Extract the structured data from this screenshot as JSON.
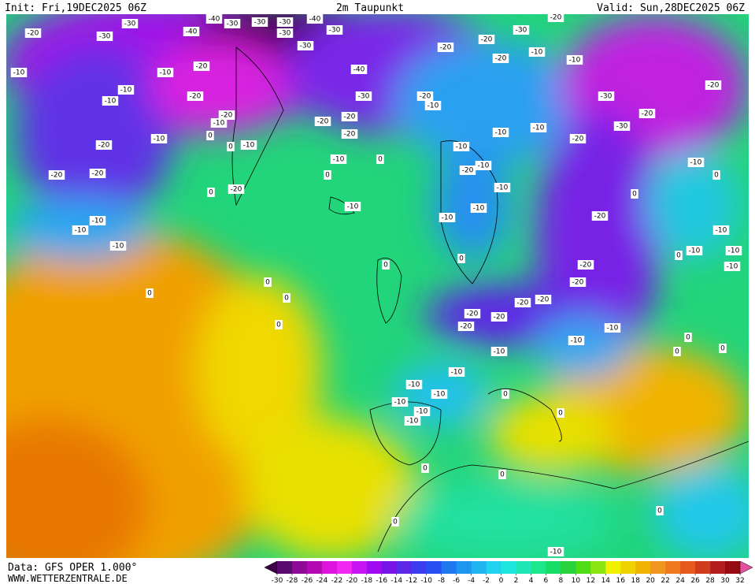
{
  "header": {
    "init": "Init: Fri,19DEC2025 06Z",
    "title": "2m Taupunkt",
    "valid": "Valid: Sun,28DEC2025 06Z"
  },
  "footer": {
    "source": "Data: GFS OPER 1.000°",
    "website": "WWW.WETTERZENTRALE.DE"
  },
  "colorbar": {
    "ticks": [
      -30,
      -28,
      -26,
      -24,
      -22,
      -20,
      -18,
      -16,
      -14,
      -12,
      -10,
      -8,
      -6,
      -4,
      -2,
      0,
      2,
      4,
      6,
      8,
      10,
      12,
      14,
      16,
      18,
      20,
      22,
      24,
      26,
      28,
      30,
      32
    ],
    "colors": [
      "#3c0046",
      "#5a0a6e",
      "#8c0a96",
      "#b40ab4",
      "#dc14dc",
      "#f028f0",
      "#c814f0",
      "#a00af0",
      "#7814e6",
      "#5a28e6",
      "#3c3cf0",
      "#2850f0",
      "#1e78f0",
      "#1e96f0",
      "#1eb4f0",
      "#1ed2f0",
      "#1ee6dc",
      "#1ee6b4",
      "#1ee68c",
      "#14dc64",
      "#28d23c",
      "#50dc14",
      "#8ce614",
      "#f0f000",
      "#f0d200",
      "#f0b400",
      "#f0961e",
      "#f0781e",
      "#e65a1e",
      "#d23c1e",
      "#b41e1e",
      "#960a14",
      "#e650a0"
    ]
  },
  "contour_labels": [
    -20,
    -30,
    -30,
    -40,
    -40,
    -30,
    -30,
    -30,
    -40,
    -30,
    -30,
    -30,
    -20,
    -30,
    -20,
    -20,
    -20,
    -10,
    -10,
    -10,
    -20,
    -10,
    -10,
    -10,
    -20,
    -20,
    -10,
    -40,
    -30,
    -20,
    -10,
    -30,
    -20,
    -30,
    -20,
    -20,
    -20,
    -20,
    -10,
    -10,
    -20,
    -20,
    -20,
    0,
    0,
    -10,
    -20,
    -10,
    -10,
    -10,
    -20,
    -10,
    0,
    -10,
    0,
    0,
    0,
    -20,
    -10,
    -10,
    -10,
    -10,
    0,
    -20,
    -10,
    -10,
    -10,
    -10,
    -10,
    -10,
    0,
    -10,
    -20,
    -20,
    0,
    0,
    0,
    0,
    0,
    0,
    -20,
    -20,
    -20,
    -20,
    -20,
    -10,
    -10,
    -10,
    -10,
    -10,
    -10,
    -10,
    -10,
    -10,
    0,
    0,
    0,
    0,
    0,
    0,
    0,
    0,
    0,
    -10
  ]
}
